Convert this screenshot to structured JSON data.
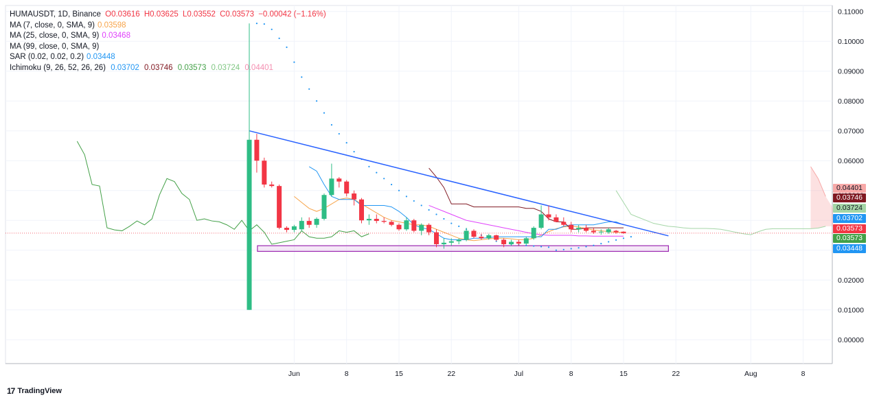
{
  "header": {
    "symbol_line": "HUMAUSDT, 1D, Binance",
    "open": "O0.03616",
    "high": "H0.03625",
    "low": "L0.03552",
    "close": "C0.03573",
    "change": "−0.00042 (−1.16%)"
  },
  "indicators": [
    {
      "label": "MA (7, close, 0, SMA, 9)",
      "value": "0.03598",
      "color": "#f7a44a"
    },
    {
      "label": "MA (25, close, 0, SMA, 9)",
      "value": "0.03468",
      "color": "#e040fb"
    },
    {
      "label": "MA (99, close, 0, SMA, 9)",
      "value": "",
      "color": "#131722"
    },
    {
      "label": "SAR (0.02, 0.02, 0.2)",
      "value": "0.03448",
      "color": "#2196f3"
    }
  ],
  "ichimoku": {
    "label": "Ichimoku (9, 26, 52, 26, 26)",
    "values": [
      {
        "value": "0.03702",
        "color": "#2196f3"
      },
      {
        "value": "0.03746",
        "color": "#801922"
      },
      {
        "value": "0.03573",
        "color": "#43a047"
      },
      {
        "value": "0.03724",
        "color": "#a5d6a7"
      },
      {
        "value": "0.04401",
        "color": "#f7a9a8"
      }
    ]
  },
  "price_labels": [
    {
      "value": "0.04401",
      "color": "#f7a9a8",
      "text_color": "#131722"
    },
    {
      "value": "0.03746",
      "color": "#801922",
      "text_color": "#ffffff"
    },
    {
      "value": "0.03724",
      "color": "#a5d6a7",
      "text_color": "#131722"
    },
    {
      "value": "0.03702",
      "color": "#2196f3",
      "text_color": "#ffffff"
    },
    {
      "value": "0.03573",
      "color": "#f23645",
      "text_color": "#ffffff"
    },
    {
      "value": "0.03573",
      "color": "#43a047",
      "text_color": "#ffffff"
    },
    {
      "value": "0.03448",
      "color": "#2196f3",
      "text_color": "#ffffff"
    }
  ],
  "footer": {
    "brand": "TradingView",
    "logo": "17"
  },
  "colors": {
    "up": "#26a69a",
    "up_body": "#2ebd85",
    "down": "#f23645",
    "trend": "#2962ff",
    "zone": "#9c27b0"
  },
  "chart_data": {
    "type": "candlestick",
    "symbol": "HUMAUSDT",
    "timeframe": "1D",
    "y_ticks": [
      "0.11000",
      "0.10000",
      "0.09000",
      "0.08000",
      "0.07000",
      "0.06000",
      "0.05000",
      "0.04000",
      "0.03000",
      "0.02000",
      "0.01000",
      "0.00000"
    ],
    "ylim": [
      -0.008,
      0.112
    ],
    "x_ticks": [
      "Jun",
      "8",
      "15",
      "22",
      "Jul",
      "8",
      "15",
      "22",
      "Aug",
      "8"
    ],
    "start_date": "2025-05-26",
    "candles": [
      [
        0.01,
        0.106,
        0.01,
        0.067
      ],
      [
        0.067,
        0.069,
        0.056,
        0.06
      ],
      [
        0.06,
        0.061,
        0.051,
        0.052
      ],
      [
        0.052,
        0.053,
        0.051,
        0.0515
      ],
      [
        0.0515,
        0.052,
        0.037,
        0.0375
      ],
      [
        0.0375,
        0.038,
        0.036,
        0.0368
      ],
      [
        0.0368,
        0.0385,
        0.036,
        0.038
      ],
      [
        0.037,
        0.041,
        0.0365,
        0.0398
      ],
      [
        0.0398,
        0.041,
        0.0375,
        0.0385
      ],
      [
        0.0385,
        0.041,
        0.0375,
        0.0405
      ],
      [
        0.0405,
        0.049,
        0.04,
        0.0485
      ],
      [
        0.0485,
        0.059,
        0.048,
        0.054
      ],
      [
        0.054,
        0.0545,
        0.051,
        0.053
      ],
      [
        0.053,
        0.0535,
        0.048,
        0.049
      ],
      [
        0.049,
        0.05,
        0.045,
        0.047
      ],
      [
        0.047,
        0.0475,
        0.039,
        0.04
      ],
      [
        0.04,
        0.042,
        0.0385,
        0.0405
      ],
      [
        0.0405,
        0.042,
        0.039,
        0.0398
      ],
      [
        0.0398,
        0.041,
        0.039,
        0.0395
      ],
      [
        0.0395,
        0.04,
        0.038,
        0.0385
      ],
      [
        0.0385,
        0.039,
        0.0365,
        0.037
      ],
      [
        0.037,
        0.041,
        0.0365,
        0.04
      ],
      [
        0.04,
        0.0405,
        0.036,
        0.0365
      ],
      [
        0.0365,
        0.039,
        0.035,
        0.0385
      ],
      [
        0.0385,
        0.039,
        0.035,
        0.036
      ],
      [
        0.036,
        0.037,
        0.031,
        0.032
      ],
      [
        0.032,
        0.034,
        0.0305,
        0.0325
      ],
      [
        0.0325,
        0.034,
        0.0315,
        0.033
      ],
      [
        0.033,
        0.034,
        0.032,
        0.0335
      ],
      [
        0.0335,
        0.0375,
        0.033,
        0.0365
      ],
      [
        0.0365,
        0.037,
        0.034,
        0.0345
      ],
      [
        0.0345,
        0.0355,
        0.0335,
        0.034
      ],
      [
        0.034,
        0.0355,
        0.0335,
        0.035
      ],
      [
        0.035,
        0.0352,
        0.033,
        0.0335
      ],
      [
        0.0335,
        0.034,
        0.031,
        0.032
      ],
      [
        0.032,
        0.0335,
        0.0315,
        0.0328
      ],
      [
        0.0328,
        0.0335,
        0.0315,
        0.0322
      ],
      [
        0.0322,
        0.0345,
        0.0318,
        0.034
      ],
      [
        0.034,
        0.038,
        0.0335,
        0.0375
      ],
      [
        0.0375,
        0.045,
        0.037,
        0.042
      ],
      [
        0.042,
        0.045,
        0.04,
        0.041
      ],
      [
        0.041,
        0.042,
        0.0395,
        0.0395
      ],
      [
        0.0395,
        0.041,
        0.038,
        0.0385
      ],
      [
        0.0385,
        0.0395,
        0.036,
        0.037
      ],
      [
        0.037,
        0.0385,
        0.036,
        0.0375
      ],
      [
        0.0375,
        0.0385,
        0.036,
        0.0365
      ],
      [
        0.0365,
        0.0375,
        0.0355,
        0.036
      ],
      [
        0.036,
        0.037,
        0.0352,
        0.0362
      ],
      [
        0.036,
        0.0375,
        0.0355,
        0.037
      ],
      [
        0.0365,
        0.0368,
        0.0355,
        0.036
      ],
      [
        0.0362,
        0.0363,
        0.0355,
        0.0357
      ]
    ],
    "series": [
      {
        "name": "MA (7, close, 0, SMA, 9)",
        "color": "#f7a44a",
        "start": 6,
        "values": [
          0.048,
          0.046,
          0.044,
          0.043,
          0.044,
          0.0455,
          0.047,
          0.0475,
          0.047,
          0.0455,
          0.044,
          0.0425,
          0.041,
          0.04,
          0.0395,
          0.039,
          0.0385,
          0.0385,
          0.038,
          0.037,
          0.036,
          0.035,
          0.034,
          0.0335,
          0.0332,
          0.0335,
          0.0338,
          0.034,
          0.034,
          0.0338,
          0.0335,
          0.0335,
          0.034,
          0.035,
          0.0362,
          0.0372,
          0.0378,
          0.038,
          0.0378,
          0.0372,
          0.0368,
          0.0365,
          0.0362,
          0.036,
          0.036
        ]
      },
      {
        "name": "MA (25, close, 0, SMA, 9)",
        "color": "#e040fb",
        "start": 24,
        "values": [
          0.045,
          0.044,
          0.043,
          0.042,
          0.041,
          0.04,
          0.0395,
          0.039,
          0.0385,
          0.038,
          0.0375,
          0.037,
          0.0365,
          0.036,
          0.0355,
          0.0352,
          0.035,
          0.035,
          0.035,
          0.035,
          0.0348,
          0.0348,
          0.0347,
          0.0347,
          0.0347,
          0.0347,
          0.0347
        ]
      },
      {
        "name": "SAR (0.02, 0.02, 0.2)",
        "color": "#2196f3",
        "dotted": true,
        "start": 1,
        "values": [
          0.106,
          0.1058,
          0.104,
          0.101,
          0.098,
          0.093,
          0.088,
          0.084,
          0.08,
          0.076,
          0.072,
          0.069,
          0.066,
          0.063,
          0.0605,
          0.058,
          0.056,
          0.054,
          0.052,
          0.05,
          0.048,
          0.0465,
          0.045,
          0.0435,
          0.042,
          0.0405,
          0.039,
          0.038,
          0.037,
          0.036,
          0.035,
          0.034,
          0.033,
          0.0325,
          0.032,
          0.0318,
          0.0316,
          0.0314,
          0.0312,
          0.031,
          0.03,
          0.0302,
          0.0305,
          0.0308,
          0.0312,
          0.0316,
          0.0322,
          0.0328,
          0.0334,
          0.034,
          0.0345
        ]
      },
      {
        "name": "Conversion",
        "color": "#2196f3",
        "start": 8,
        "values": [
          0.058,
          0.0565,
          0.052,
          0.048,
          0.047,
          0.047,
          0.047,
          0.045,
          0.045,
          0.045,
          0.045,
          0.0445,
          0.043,
          0.041,
          0.0385,
          0.0375,
          0.037,
          0.0355,
          0.034,
          0.0335,
          0.0335,
          0.0335,
          0.034,
          0.034,
          0.0342,
          0.0345,
          0.0345,
          0.0345,
          0.0345,
          0.0345,
          0.0345,
          0.0345,
          0.037,
          0.037,
          0.038,
          0.0385,
          0.0385,
          0.0385,
          0.0385,
          0.039,
          0.0395,
          0.0395,
          0.0385
        ]
      },
      {
        "name": "Base",
        "color": "#801922",
        "start": 24,
        "values": [
          0.0575,
          0.0545,
          0.051,
          0.0455,
          0.0455,
          0.0455,
          0.0445,
          0.0445,
          0.0445,
          0.0445,
          0.0445,
          0.0445,
          0.0445,
          0.044,
          0.044,
          0.043,
          0.0405,
          0.0395,
          0.0395,
          0.037,
          0.037,
          0.0375,
          0.0375,
          0.0375,
          0.0375,
          0.0375,
          0.0375
        ]
      },
      {
        "name": "Lagging",
        "color": "#43a047",
        "start": -23,
        "values": [
          0.0665,
          0.062,
          0.052,
          0.0515,
          0.0375,
          0.0368,
          0.0365,
          0.038,
          0.0398,
          0.0385,
          0.0405,
          0.0485,
          0.054,
          0.053,
          0.049,
          0.047,
          0.04,
          0.0405,
          0.0398,
          0.0395,
          0.0385,
          0.037,
          0.04,
          0.0365,
          0.0385,
          0.036,
          0.032,
          0.0325,
          0.033,
          0.0335,
          0.0365,
          0.0345,
          0.034,
          0.034,
          0.0345,
          0.0365,
          0.036,
          0.0365,
          0.0345,
          0.0355
        ]
      },
      {
        "name": "Leading A",
        "color": "#a5d6a7",
        "start": 49,
        "values": [
          0.05,
          0.046,
          0.042,
          0.041,
          0.04,
          0.039,
          0.0385,
          0.038,
          0.0378,
          0.0375,
          0.0373,
          0.0373,
          0.0373,
          0.0372,
          0.037,
          0.0365,
          0.036,
          0.0355,
          0.0352,
          0.0362,
          0.037,
          0.0372,
          0.0372,
          0.0372,
          0.0372,
          0.0372,
          0.0372,
          0.0374,
          0.038
        ]
      },
      {
        "name": "Leading B",
        "color": "#f7a9a8",
        "start": 75,
        "values": [
          0.058,
          0.054,
          0.048,
          0.044
        ]
      }
    ],
    "trendline": {
      "from": [
        0,
        0.07
      ],
      "to": [
        56,
        0.0348
      ]
    },
    "zone": {
      "from_day": 1,
      "to_day": 56,
      "top": 0.0315,
      "bottom": 0.0296
    }
  }
}
